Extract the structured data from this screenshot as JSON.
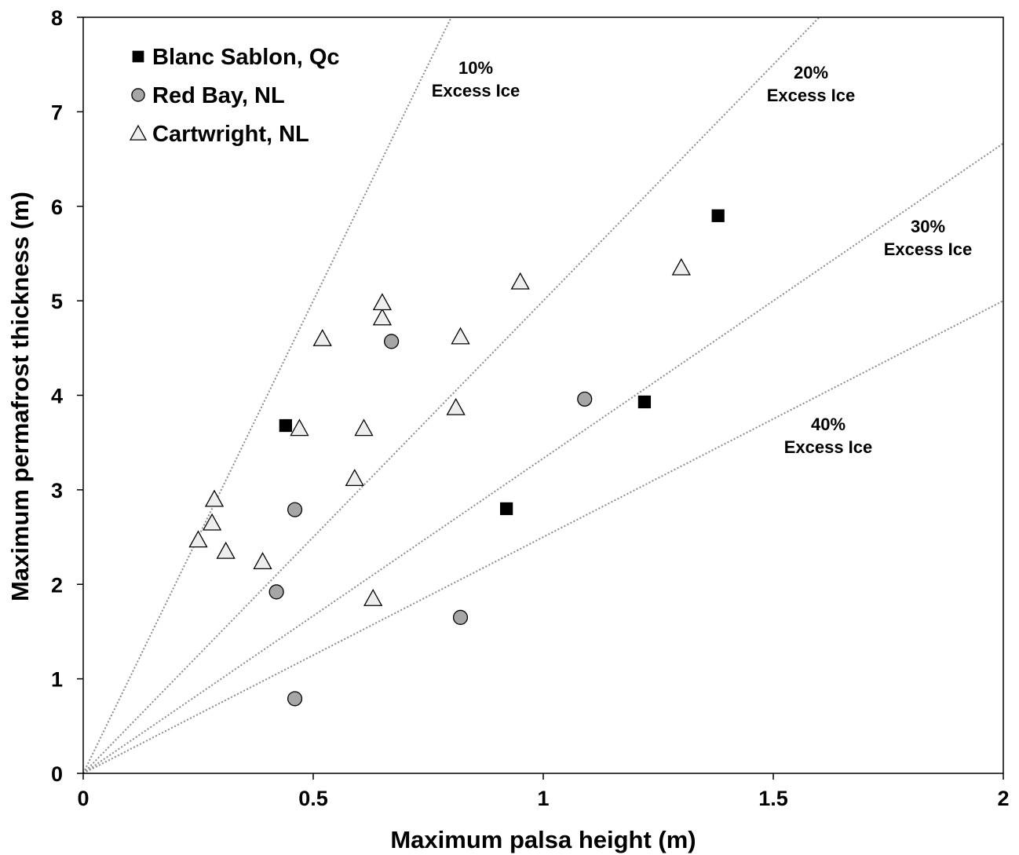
{
  "chart_data": {
    "type": "scatter",
    "xlabel": "Maximum palsa height (m)",
    "ylabel": "Maximum permafrost thickness (m)",
    "xlim": [
      0,
      2
    ],
    "ylim": [
      0,
      8
    ],
    "xticks": [
      0,
      0.5,
      1,
      1.5,
      2
    ],
    "xtick_labels": [
      "0",
      "0.5",
      "1",
      "1.5",
      "2"
    ],
    "yticks": [
      0,
      1,
      2,
      3,
      4,
      5,
      6,
      7,
      8
    ],
    "ytick_labels": [
      "0",
      "1",
      "2",
      "3",
      "4",
      "5",
      "6",
      "7",
      "8"
    ],
    "grid": false,
    "legend_position": "top-left",
    "series": [
      {
        "name": "Blanc Sablon, Qc",
        "marker": "square",
        "color": "#000000",
        "points": [
          [
            0.44,
            3.68
          ],
          [
            0.92,
            2.8
          ],
          [
            1.22,
            3.93
          ],
          [
            1.38,
            5.9
          ]
        ]
      },
      {
        "name": "Red Bay, NL",
        "marker": "circle",
        "color": "#a6a6a6",
        "points": [
          [
            0.46,
            0.79
          ],
          [
            0.42,
            1.92
          ],
          [
            0.46,
            2.79
          ],
          [
            0.67,
            4.57
          ],
          [
            0.82,
            1.65
          ],
          [
            1.09,
            3.96
          ]
        ]
      },
      {
        "name": "Cartwright, NL",
        "marker": "triangle",
        "color": "#eeeeee",
        "points": [
          [
            0.25,
            2.47
          ],
          [
            0.28,
            2.65
          ],
          [
            0.285,
            2.9
          ],
          [
            0.31,
            2.35
          ],
          [
            0.39,
            2.24
          ],
          [
            0.47,
            3.65
          ],
          [
            0.52,
            4.6
          ],
          [
            0.59,
            3.12
          ],
          [
            0.61,
            3.65
          ],
          [
            0.63,
            1.85
          ],
          [
            0.65,
            4.82
          ],
          [
            0.65,
            4.98
          ],
          [
            0.81,
            3.87
          ],
          [
            0.82,
            4.62
          ],
          [
            0.95,
            5.2
          ],
          [
            1.3,
            5.35
          ]
        ]
      }
    ],
    "reference_lines": [
      {
        "label_line1": "10%",
        "label_line2": "Excess Ice",
        "slope": 10
      },
      {
        "label_line1": "20%",
        "label_line2": "Excess Ice",
        "slope": 5
      },
      {
        "label_line1": "30%",
        "label_line2": "Excess Ice",
        "slope": 3.333
      },
      {
        "label_line1": "40%",
        "label_line2": "Excess Ice",
        "slope": 2.5
      }
    ]
  }
}
